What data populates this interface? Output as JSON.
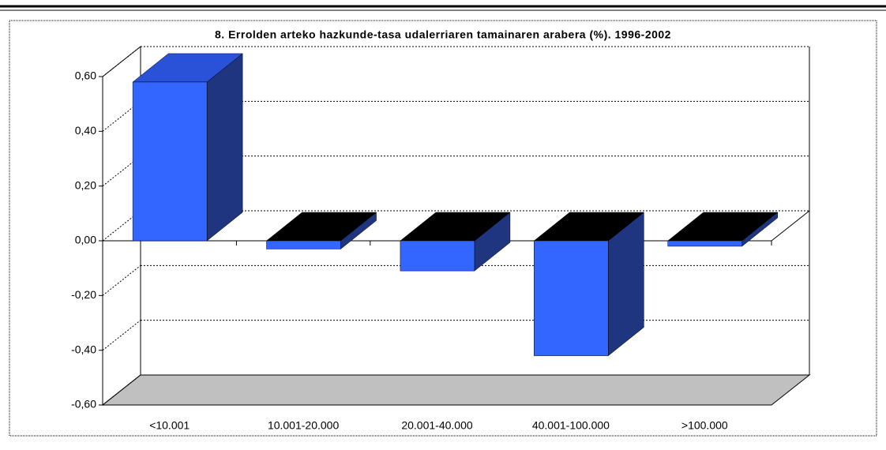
{
  "chart_data": {
    "type": "bar3d",
    "title": "8. Errolden arteko hazkunde-tasa udalerriaren tamainaren arabera (%). 1996-2002",
    "categories": [
      "<10.001",
      "10.001-20.000",
      "20.001-40.000",
      "40.001-100.000",
      ">100.000"
    ],
    "values": [
      0.58,
      -0.03,
      -0.11,
      -0.42,
      -0.02
    ],
    "color": "#3366ff",
    "ylim": [
      -0.6,
      0.6
    ],
    "yticks": [
      {
        "value": -0.6,
        "label": "-0,60"
      },
      {
        "value": -0.4,
        "label": "-0,40"
      },
      {
        "value": -0.2,
        "label": "-0,20"
      },
      {
        "value": 0,
        "label": "0,00"
      },
      {
        "value": 0.2,
        "label": "0,20"
      },
      {
        "value": 0.4,
        "label": "0,40"
      },
      {
        "value": 0.6,
        "label": "0,60"
      }
    ],
    "grid": true
  }
}
